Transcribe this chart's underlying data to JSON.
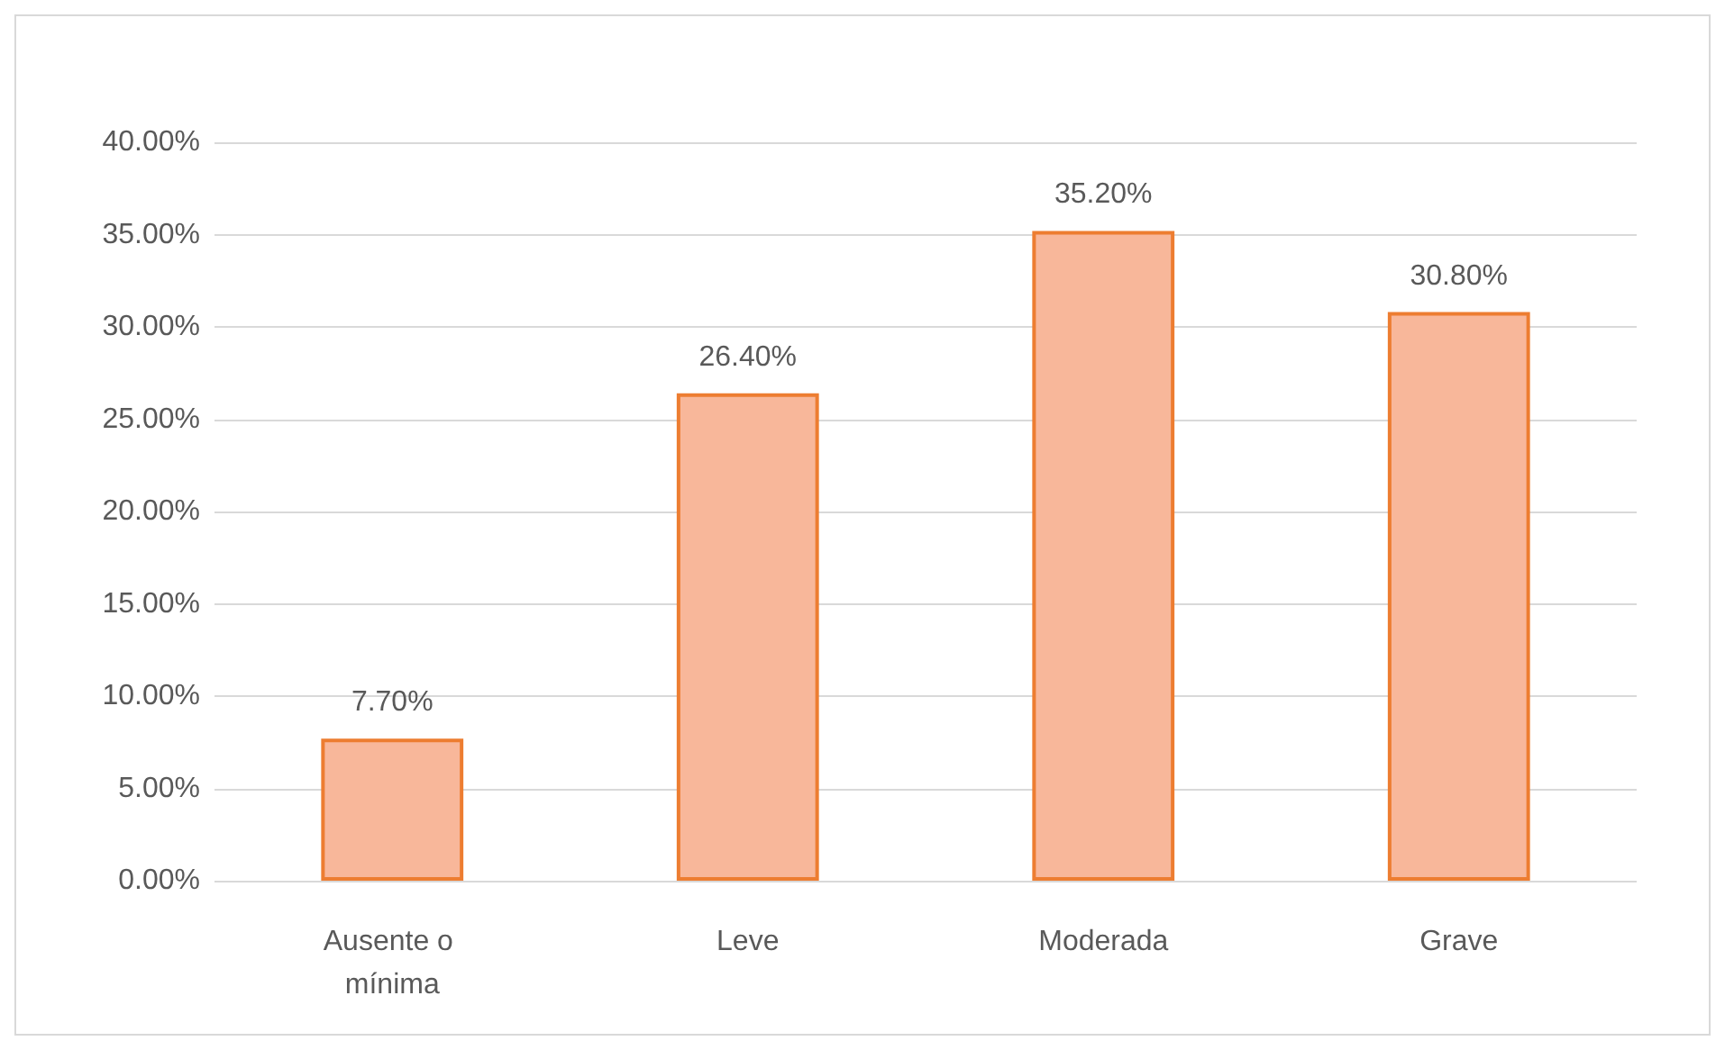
{
  "chart_data": {
    "type": "bar",
    "categories": [
      "Ausente o mínima",
      "Leve",
      "Moderada",
      "Grave"
    ],
    "values": [
      7.7,
      26.4,
      35.2,
      30.8
    ],
    "value_labels": [
      "7.70%",
      "26.40%",
      "35.20%",
      "30.80%"
    ],
    "color": "#f8b79a",
    "ylim": [
      0,
      40
    ],
    "yticks": [
      {
        "value": 0,
        "label": "0.00%"
      },
      {
        "value": 5,
        "label": "5.00%"
      },
      {
        "value": 10,
        "label": "10.00%"
      },
      {
        "value": 15,
        "label": "15.00%"
      },
      {
        "value": 20,
        "label": "20.00%"
      },
      {
        "value": 25,
        "label": "25.00%"
      },
      {
        "value": 30,
        "label": "30.00%"
      },
      {
        "value": 35,
        "label": "35.00%"
      },
      {
        "value": 40,
        "label": "40.00%"
      }
    ],
    "grid": "y"
  }
}
